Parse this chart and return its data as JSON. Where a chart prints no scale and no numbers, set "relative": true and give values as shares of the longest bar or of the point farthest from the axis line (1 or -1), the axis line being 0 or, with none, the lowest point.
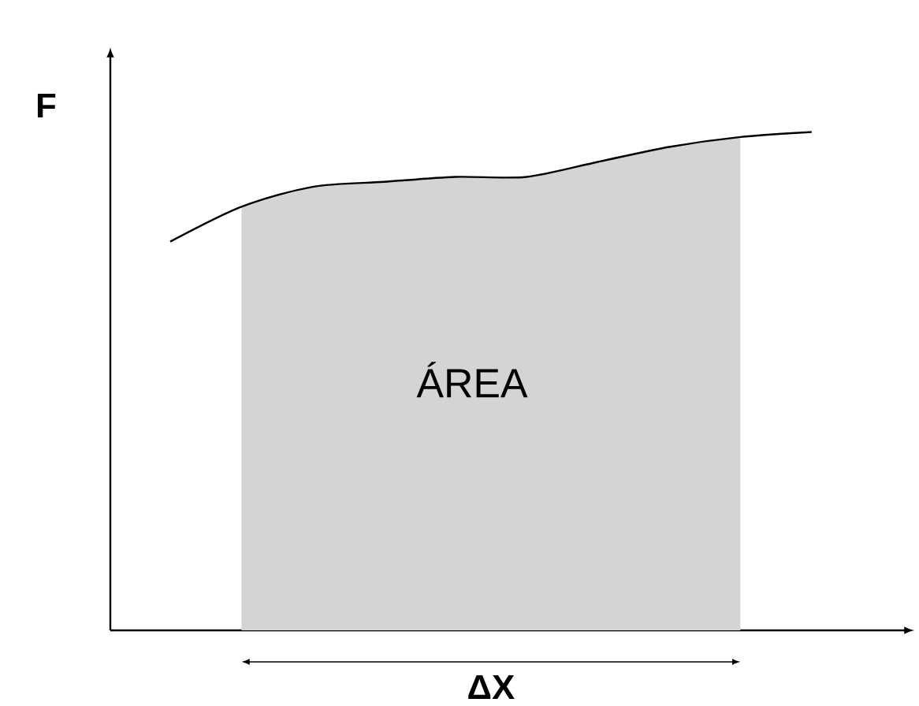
{
  "chart_data": {
    "type": "line",
    "relative": true,
    "xlabel": "ΔX",
    "ylabel": "F",
    "annotations": [
      "ÁREA"
    ],
    "categories": [
      null,
      null,
      null,
      null,
      null,
      null,
      null,
      null,
      null,
      null
    ],
    "series": [
      {
        "type": "area",
        "color": "#d4d4d4",
        "values": [
          null,
          0.85,
          0.89,
          0.9,
          0.91,
          0.91,
          0.94,
          0.97,
          0.99,
          null
        ]
      },
      {
        "color": "#000000",
        "values": [
          0.78,
          0.85,
          0.89,
          0.9,
          0.91,
          0.91,
          0.94,
          0.97,
          0.99,
          1.0
        ]
      }
    ]
  }
}
